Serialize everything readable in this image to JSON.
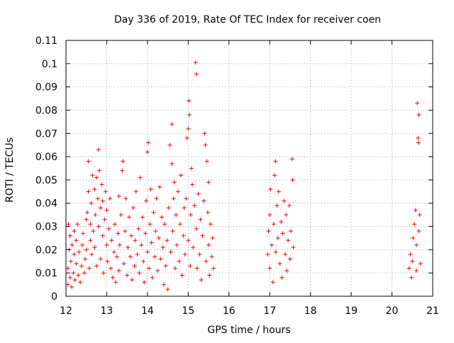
{
  "chart_data": {
    "type": "scatter",
    "title": "Day 336 of 2019, Rate Of TEC Index for receiver coen",
    "xlabel": "GPS time / hours",
    "ylabel": "ROTI / TECUs",
    "xlim": [
      12,
      21
    ],
    "ylim": [
      0,
      0.11
    ],
    "x_ticks": [
      "12",
      "13",
      "14",
      "15",
      "16",
      "17",
      "18",
      "19",
      "20",
      "21"
    ],
    "y_ticks": [
      "0",
      "0.01",
      "0.02",
      "0.03",
      "0.04",
      "0.05",
      "0.06",
      "0.07",
      "0.08",
      "0.09",
      "0.1",
      "0.11"
    ],
    "grid": true,
    "marker": "+",
    "marker_color": "#ff0000",
    "series": [
      {
        "points": [
          [
            12.05,
            0.005
          ],
          [
            12.05,
            0.012
          ],
          [
            12.06,
            0.031
          ],
          [
            12.08,
            0.02
          ],
          [
            12.1,
            0.008
          ],
          [
            12.1,
            0.026
          ],
          [
            12.12,
            0.015
          ],
          [
            12.14,
            0.004
          ],
          [
            12.15,
            0.022
          ],
          [
            12.18,
            0.01
          ],
          [
            12.2,
            0.018
          ],
          [
            12.2,
            0.028
          ],
          [
            12.22,
            0.007
          ],
          [
            12.25,
            0.014
          ],
          [
            12.25,
            0.024
          ],
          [
            12.28,
            0.031
          ],
          [
            12.3,
            0.009
          ],
          [
            12.32,
            0.019
          ],
          [
            12.35,
            0.006
          ],
          [
            12.38,
            0.013
          ],
          [
            12.4,
            0.022
          ],
          [
            12.42,
            0.027
          ],
          [
            12.45,
            0.01
          ],
          [
            12.47,
            0.016
          ],
          [
            12.5,
            0.02
          ],
          [
            12.5,
            0.033
          ],
          [
            12.52,
            0.036
          ],
          [
            12.55,
            0.058
          ],
          [
            12.55,
            0.045
          ],
          [
            12.57,
            0.012
          ],
          [
            12.6,
            0.024
          ],
          [
            12.6,
            0.031
          ],
          [
            12.62,
            0.04
          ],
          [
            12.63,
            0.018
          ],
          [
            12.65,
            0.052
          ],
          [
            12.67,
            0.028
          ],
          [
            12.7,
            0.021
          ],
          [
            12.7,
            0.046
          ],
          [
            12.72,
            0.035
          ],
          [
            12.75,
            0.051
          ],
          [
            12.75,
            0.013
          ],
          [
            12.78,
            0.042
          ],
          [
            12.8,
            0.063
          ],
          [
            12.8,
            0.03
          ],
          [
            12.82,
            0.054
          ],
          [
            12.85,
            0.038
          ],
          [
            12.85,
            0.016
          ],
          [
            12.88,
            0.048
          ],
          [
            12.9,
            0.026
          ],
          [
            12.9,
            0.041
          ],
          [
            12.92,
            0.01
          ],
          [
            12.95,
            0.033
          ],
          [
            12.97,
            0.045
          ],
          [
            13.0,
            0.022
          ],
          [
            13.0,
            0.037
          ],
          [
            13.02,
            0.015
          ],
          [
            13.05,
            0.029
          ],
          [
            13.08,
            0.042
          ],
          [
            13.1,
            0.012
          ],
          [
            13.12,
            0.024
          ],
          [
            13.15,
            0.008
          ],
          [
            13.18,
            0.019
          ],
          [
            13.2,
            0.031
          ],
          [
            13.22,
            0.006
          ],
          [
            13.25,
            0.017
          ],
          [
            13.28,
            0.027
          ],
          [
            13.3,
            0.011
          ],
          [
            13.3,
            0.043
          ],
          [
            13.32,
            0.022
          ],
          [
            13.35,
            0.035
          ],
          [
            13.38,
            0.054
          ],
          [
            13.4,
            0.058
          ],
          [
            13.42,
            0.014
          ],
          [
            13.45,
            0.028
          ],
          [
            13.47,
            0.042
          ],
          [
            13.5,
            0.009
          ],
          [
            13.52,
            0.021
          ],
          [
            13.55,
            0.034
          ],
          [
            13.58,
            0.017
          ],
          [
            13.6,
            0.026
          ],
          [
            13.62,
            0.007
          ],
          [
            13.65,
            0.038
          ],
          [
            13.68,
            0.013
          ],
          [
            13.7,
            0.024
          ],
          [
            13.72,
            0.045
          ],
          [
            13.75,
            0.018
          ],
          [
            13.78,
            0.029
          ],
          [
            13.8,
            0.01
          ],
          [
            13.82,
            0.051
          ],
          [
            13.85,
            0.022
          ],
          [
            13.88,
            0.034
          ],
          [
            13.9,
            0.015
          ],
          [
            13.92,
            0.006
          ],
          [
            13.95,
            0.027
          ],
          [
            13.97,
            0.041
          ],
          [
            14.0,
            0.019
          ],
          [
            14.0,
            0.062
          ],
          [
            14.02,
            0.066
          ],
          [
            14.04,
            0.012
          ],
          [
            14.06,
            0.031
          ],
          [
            14.08,
            0.046
          ],
          [
            14.1,
            0.023
          ],
          [
            14.12,
            0.008
          ],
          [
            14.15,
            0.036
          ],
          [
            14.18,
            0.017
          ],
          [
            14.2,
            0.028
          ],
          [
            14.22,
            0.042
          ],
          [
            14.25,
            0.011
          ],
          [
            14.28,
            0.025
          ],
          [
            14.3,
            0.047
          ],
          [
            14.32,
            0.016
          ],
          [
            14.35,
            0.034
          ],
          [
            14.38,
            0.021
          ],
          [
            14.4,
            0.005
          ],
          [
            14.42,
            0.031
          ],
          [
            14.45,
            0.013
          ],
          [
            14.48,
            0.024
          ],
          [
            14.5,
            0.003
          ],
          [
            14.52,
            0.038
          ],
          [
            14.55,
            0.065
          ],
          [
            14.57,
            0.019
          ],
          [
            14.6,
            0.074
          ],
          [
            14.6,
            0.057
          ],
          [
            14.62,
            0.028
          ],
          [
            14.64,
            0.042
          ],
          [
            14.66,
            0.049
          ],
          [
            14.68,
            0.012
          ],
          [
            14.7,
            0.035
          ],
          [
            14.72,
            0.022
          ],
          [
            14.75,
            0.045
          ],
          [
            14.78,
            0.015
          ],
          [
            14.8,
            0.031
          ],
          [
            14.82,
            0.052
          ],
          [
            14.85,
            0.009
          ],
          [
            14.88,
            0.026
          ],
          [
            14.9,
            0.038
          ],
          [
            14.92,
            0.018
          ],
          [
            14.95,
            0.042
          ],
          [
            14.97,
            0.068
          ],
          [
            15.0,
            0.024
          ],
          [
            15.0,
            0.072
          ],
          [
            15.02,
            0.084
          ],
          [
            15.03,
            0.078
          ],
          [
            15.05,
            0.013
          ],
          [
            15.06,
            0.035
          ],
          [
            15.08,
            0.055
          ],
          [
            15.1,
            0.048
          ],
          [
            15.12,
            0.021
          ],
          [
            15.15,
            0.039
          ],
          [
            15.18,
            0.1005
          ],
          [
            15.2,
            0.0955
          ],
          [
            15.2,
            0.029
          ],
          [
            15.22,
            0.012
          ],
          [
            15.25,
            0.044
          ],
          [
            15.28,
            0.018
          ],
          [
            15.3,
            0.033
          ],
          [
            15.32,
            0.007
          ],
          [
            15.35,
            0.026
          ],
          [
            15.38,
            0.041
          ],
          [
            15.4,
            0.07
          ],
          [
            15.42,
            0.065
          ],
          [
            15.44,
            0.015
          ],
          [
            15.46,
            0.058
          ],
          [
            15.48,
            0.036
          ],
          [
            15.5,
            0.022
          ],
          [
            15.5,
            0.049
          ],
          [
            15.52,
            0.009
          ],
          [
            15.55,
            0.031
          ],
          [
            15.58,
            0.017
          ],
          [
            15.6,
            0.025
          ],
          [
            15.62,
            0.012
          ],
          [
            16.95,
            0.018
          ],
          [
            16.97,
            0.028
          ],
          [
            17.0,
            0.012
          ],
          [
            17.0,
            0.035
          ],
          [
            17.02,
            0.046
          ],
          [
            17.05,
            0.022
          ],
          [
            17.08,
            0.006
          ],
          [
            17.1,
            0.031
          ],
          [
            17.12,
            0.052
          ],
          [
            17.14,
            0.058
          ],
          [
            17.15,
            0.019
          ],
          [
            17.18,
            0.039
          ],
          [
            17.2,
            0.025
          ],
          [
            17.22,
            0.045
          ],
          [
            17.25,
            0.014
          ],
          [
            17.28,
            0.032
          ],
          [
            17.3,
            0.008
          ],
          [
            17.32,
            0.027
          ],
          [
            17.35,
            0.041
          ],
          [
            17.38,
            0.018
          ],
          [
            17.4,
            0.035
          ],
          [
            17.42,
            0.011
          ],
          [
            17.45,
            0.024
          ],
          [
            17.48,
            0.039
          ],
          [
            17.5,
            0.016
          ],
          [
            17.52,
            0.028
          ],
          [
            17.55,
            0.059
          ],
          [
            17.56,
            0.05
          ],
          [
            17.58,
            0.021
          ],
          [
            20.42,
            0.012
          ],
          [
            20.45,
            0.018
          ],
          [
            20.48,
            0.008
          ],
          [
            20.5,
            0.015
          ],
          [
            20.52,
            0.025
          ],
          [
            20.55,
            0.031
          ],
          [
            20.58,
            0.037
          ],
          [
            20.6,
            0.011
          ],
          [
            20.6,
            0.022
          ],
          [
            20.62,
            0.083
          ],
          [
            20.64,
            0.068
          ],
          [
            20.65,
            0.066
          ],
          [
            20.66,
            0.028
          ],
          [
            20.66,
            0.078
          ],
          [
            20.68,
            0.035
          ],
          [
            20.7,
            0.014
          ]
        ]
      }
    ]
  }
}
